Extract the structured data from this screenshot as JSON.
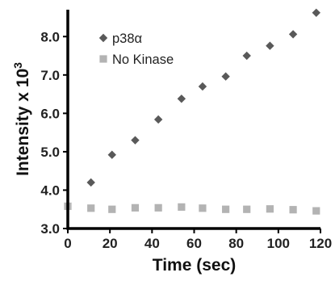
{
  "chart_data": {
    "type": "scatter",
    "title": "",
    "xlabel": "Time (sec)",
    "ylabel": "Intensity x 10",
    "ylabel_superscript": "3",
    "xlim": [
      0,
      120
    ],
    "ylim": [
      3.0,
      8.7
    ],
    "x_ticks": [
      0,
      20,
      40,
      60,
      80,
      100,
      120
    ],
    "x_tick_labels": [
      "0",
      "20",
      "40",
      "60",
      "80",
      "100",
      "120"
    ],
    "y_ticks": [
      3.0,
      4.0,
      5.0,
      6.0,
      7.0,
      8.0
    ],
    "y_tick_labels": [
      "3.0",
      "4.0",
      "5.0",
      "6.0",
      "7.0",
      "8.0"
    ],
    "grid": false,
    "legend_position": "top-left",
    "series": [
      {
        "name": "p38α",
        "marker": "diamond",
        "color": "#595959",
        "x": [
          11,
          21,
          32,
          43,
          54,
          64,
          75,
          85,
          96,
          107,
          118
        ],
        "y": [
          4.2,
          4.92,
          5.3,
          5.84,
          6.38,
          6.7,
          6.96,
          7.5,
          7.76,
          8.06,
          8.62
        ]
      },
      {
        "name": "No Kinase",
        "marker": "square",
        "color": "#b3b3b3",
        "x": [
          0,
          11,
          21,
          32,
          43,
          54,
          64,
          75,
          85,
          96,
          107,
          118
        ],
        "y": [
          3.58,
          3.53,
          3.5,
          3.54,
          3.54,
          3.56,
          3.53,
          3.5,
          3.5,
          3.51,
          3.49,
          3.46
        ]
      }
    ]
  }
}
